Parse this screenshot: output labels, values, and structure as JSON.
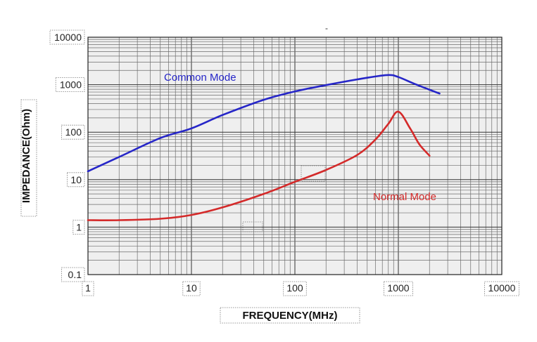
{
  "chart_data": {
    "type": "line",
    "title": "",
    "xlabel": "FREQUENCY(MHz)",
    "ylabel": "IMPEDANCE(Ohm)",
    "xscale": "log",
    "yscale": "log",
    "xlim": [
      1,
      10000
    ],
    "ylim": [
      0.1,
      10000
    ],
    "x_ticks": [
      "1",
      "10",
      "100",
      "1000",
      "10000"
    ],
    "y_ticks": [
      "0.1",
      "1",
      "10",
      "100",
      "1000",
      "10000"
    ],
    "grid": true,
    "series": [
      {
        "name": "Common Mode",
        "color": "#2626c8",
        "x": [
          1,
          2,
          5,
          10,
          20,
          50,
          100,
          200,
          500,
          800,
          1000,
          1500,
          2500
        ],
        "y": [
          15,
          30,
          75,
          120,
          230,
          480,
          720,
          980,
          1400,
          1600,
          1450,
          1000,
          650
        ]
      },
      {
        "name": "Normal Mode",
        "color": "#d42a2a",
        "x": [
          1,
          2,
          5,
          10,
          20,
          50,
          100,
          200,
          400,
          600,
          800,
          1000,
          1300,
          1600,
          2000
        ],
        "y": [
          1.4,
          1.4,
          1.5,
          1.8,
          2.6,
          5,
          9,
          16,
          33,
          70,
          150,
          270,
          120,
          55,
          32
        ]
      }
    ]
  }
}
